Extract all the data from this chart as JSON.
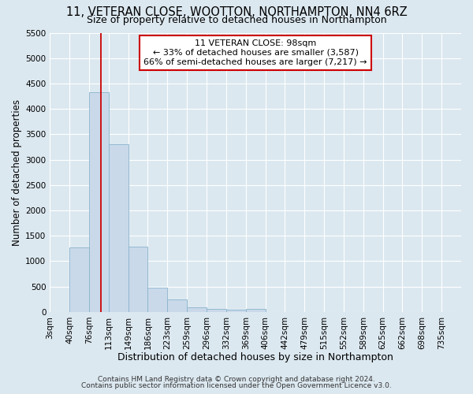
{
  "title": "11, VETERAN CLOSE, WOOTTON, NORTHAMPTON, NN4 6RZ",
  "subtitle": "Size of property relative to detached houses in Northampton",
  "xlabel": "Distribution of detached houses by size in Northampton",
  "ylabel": "Number of detached properties",
  "categories": [
    "3sqm",
    "40sqm",
    "76sqm",
    "113sqm",
    "149sqm",
    "186sqm",
    "223sqm",
    "259sqm",
    "296sqm",
    "332sqm",
    "369sqm",
    "406sqm",
    "442sqm",
    "479sqm",
    "515sqm",
    "552sqm",
    "589sqm",
    "625sqm",
    "662sqm",
    "698sqm",
    "735sqm"
  ],
  "values": [
    0,
    1270,
    4330,
    3300,
    1280,
    480,
    240,
    90,
    65,
    50,
    60,
    0,
    0,
    0,
    0,
    0,
    0,
    0,
    0,
    0,
    0
  ],
  "bar_color": "#c9d9ea",
  "bar_edge_color": "#8ab4cc",
  "ylim": [
    0,
    5500
  ],
  "yticks": [
    0,
    500,
    1000,
    1500,
    2000,
    2500,
    3000,
    3500,
    4000,
    4500,
    5000,
    5500
  ],
  "vline_color": "#cc0000",
  "annotation_title": "11 VETERAN CLOSE: 98sqm",
  "annotation_line1": "← 33% of detached houses are smaller (3,587)",
  "annotation_line2": "66% of semi-detached houses are larger (7,217) →",
  "annotation_box_facecolor": "#ffffff",
  "annotation_box_edgecolor": "#cc0000",
  "fig_bg_color": "#dce8f0",
  "ax_bg_color": "#dce8f0",
  "grid_color": "#ffffff",
  "footer1": "Contains HM Land Registry data © Crown copyright and database right 2024.",
  "footer2": "Contains public sector information licensed under the Open Government Licence v3.0.",
  "title_fontsize": 10.5,
  "subtitle_fontsize": 9,
  "xlabel_fontsize": 9,
  "ylabel_fontsize": 8.5,
  "tick_fontsize": 7.5,
  "footer_fontsize": 6.5
}
